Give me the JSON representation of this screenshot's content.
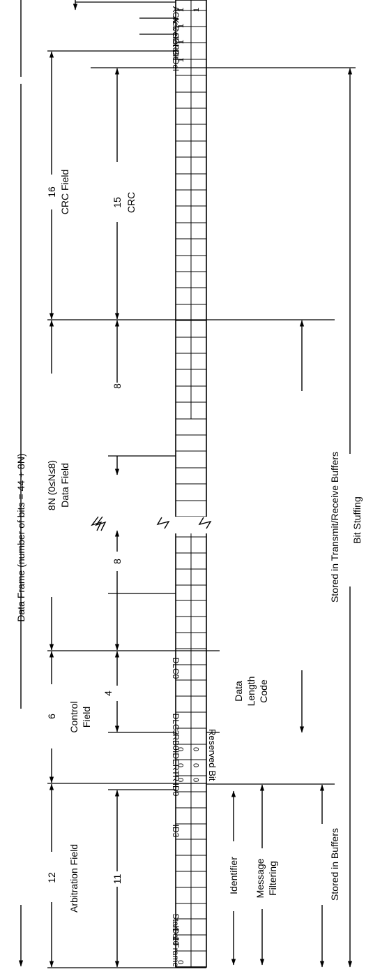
{
  "frame": {
    "title": "Data Frame (number of bits = 44 + 8N)",
    "bit_stuffing": "Bit Stuffing"
  },
  "fields": {
    "arbitration": {
      "count": "12",
      "name": "Arbitration Field"
    },
    "control": {
      "count": "6",
      "name": "Control Field",
      "name_line1": "Control",
      "name_line2": "Field"
    },
    "data": {
      "count": "8N (0≤N≤8)",
      "name": "Data Field"
    },
    "crc_field": {
      "count": "16",
      "name": "CRC Field"
    }
  },
  "subfields": {
    "identifier_bits": "11",
    "dlc_bits": "4",
    "data_byte_1": "8",
    "data_byte_2": "8",
    "crc_bits": "15",
    "crc_name": "CRC"
  },
  "bit_labels": {
    "start_of_frame": "Start of Frame",
    "id10": "ID 10",
    "id3": "ID3",
    "id0": "ID0",
    "rtr": "RTR",
    "ide": "IDE",
    "rb0": "RB0",
    "dlc3": "DLC3",
    "dlc0": "DLC0",
    "crc_del": "CRC Del",
    "ack_slot": "Ack Slot Bit",
    "ack_del": "ACK Del"
  },
  "bit_values": {
    "sof": "0",
    "rtr": "0",
    "ide": "0",
    "rb0": "0",
    "crc_del": "1",
    "ack_slot": "1",
    "ack_del": "1",
    "top_1": "1",
    "top_2": "1"
  },
  "annotations": {
    "identifier": "Identifier",
    "message_filtering": "Message Filtering",
    "message_filtering_line1": "Message",
    "message_filtering_line2": "Filtering",
    "reserved_bit": "Reserved Bit",
    "dlc_name": "Data Length Code",
    "dlc_line1": "Data",
    "dlc_line2": "Length",
    "dlc_line3": "Code",
    "stored_in_buffers": "Stored in Buffers",
    "stored_in_tx_rx": "Stored in Transmit/Receive Buffers"
  }
}
